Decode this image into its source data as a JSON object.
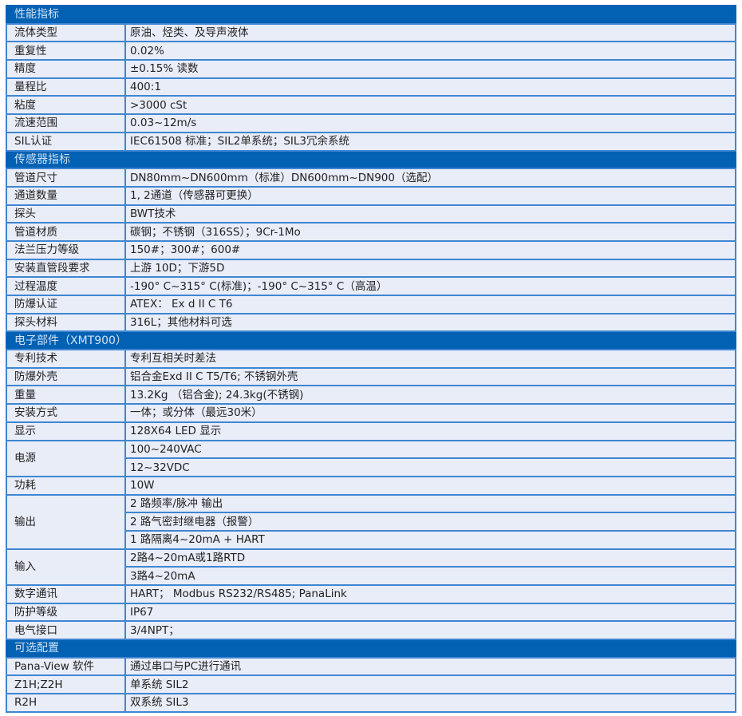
{
  "colors": {
    "section_bg": "#0261b3",
    "section_text": "#cfe2f6",
    "cell_bg": "#e9edf8",
    "border": "#3f86d2"
  },
  "sections": [
    {
      "title": "性能指标",
      "rows": [
        {
          "label": "流体类型",
          "values": [
            "原油、烃类、及导声液体"
          ]
        },
        {
          "label": "重复性",
          "values": [
            "0.02%"
          ]
        },
        {
          "label": "精度",
          "values": [
            "±0.15% 读数"
          ]
        },
        {
          "label": "量程比",
          "values": [
            "400:1"
          ]
        },
        {
          "label": "粘度",
          "values": [
            ">3000 cSt"
          ]
        },
        {
          "label": "流速范围",
          "values": [
            "0.03~12m/s"
          ]
        },
        {
          "label": "SIL认证",
          "values": [
            "IEC61508 标准；SIL2单系统；SIL3冗余系统"
          ]
        }
      ]
    },
    {
      "title": "传感器指标",
      "rows": [
        {
          "label": "管道尺寸",
          "values": [
            "DN80mm~DN600mm（标准）DN600mm~DN900（选配）"
          ]
        },
        {
          "label": "通道数量",
          "values": [
            "1, 2通道（传感器可更换）"
          ]
        },
        {
          "label": "探头",
          "values": [
            "BWT技术"
          ]
        },
        {
          "label": "管道材质",
          "values": [
            "碳钢；不锈钢（316SS）；9Cr-1Mo"
          ]
        },
        {
          "label": "法兰压力等级",
          "values": [
            "150#；300#；600#"
          ]
        },
        {
          "label": "安装直管段要求",
          "values": [
            "上游 10D；下游5D"
          ]
        },
        {
          "label": "过程温度",
          "values": [
            "-190° C~315° C(标准)；-190° C~315° C（高温）"
          ]
        },
        {
          "label": "防爆认证",
          "values": [
            "ATEX： Ex d II C T6"
          ]
        },
        {
          "label": "探头材料",
          "values": [
            "316L；其他材料可选"
          ]
        }
      ]
    },
    {
      "title": "电子部件（XMT900）",
      "rows": [
        {
          "label": "专利技术",
          "values": [
            "专利互相关时差法"
          ]
        },
        {
          "label": "防爆外壳",
          "values": [
            "铝合金Exd II C T5/T6; 不锈钢外壳"
          ]
        },
        {
          "label": "重量",
          "values": [
            "13.2Kg （铝合金); 24.3kg(不锈钢)"
          ]
        },
        {
          "label": "安装方式",
          "values": [
            "一体；或分体（最远30米）"
          ]
        },
        {
          "label": "显示",
          "values": [
            "128X64 LED 显示"
          ]
        },
        {
          "label": "电源",
          "values": [
            "100~240VAC",
            "12~32VDC"
          ]
        },
        {
          "label": "功耗",
          "values": [
            "10W"
          ]
        },
        {
          "label": "输出",
          "values": [
            "2 路频率/脉冲 输出",
            "2 路气密封继电器（报警）",
            "1 路隔离4~20mA + HART"
          ]
        },
        {
          "label": "输入",
          "values": [
            "2路4~20mA或1路RTD",
            "3路4~20mA"
          ]
        },
        {
          "label": "数字通讯",
          "values": [
            "HART； Modbus RS232/RS485; PanaLink"
          ]
        },
        {
          "label": "防护等级",
          "values": [
            "IP67"
          ]
        },
        {
          "label": "电气接口",
          "values": [
            "3/4NPT；"
          ]
        }
      ]
    },
    {
      "title": "可选配置",
      "rows": [
        {
          "label": "Pana-View 软件",
          "values": [
            "通过串口与PC进行通讯"
          ]
        },
        {
          "label": "Z1H;Z2H",
          "values": [
            "单系统 SIL2"
          ]
        },
        {
          "label": "R2H",
          "values": [
            "双系统 SIL3"
          ]
        }
      ]
    }
  ]
}
